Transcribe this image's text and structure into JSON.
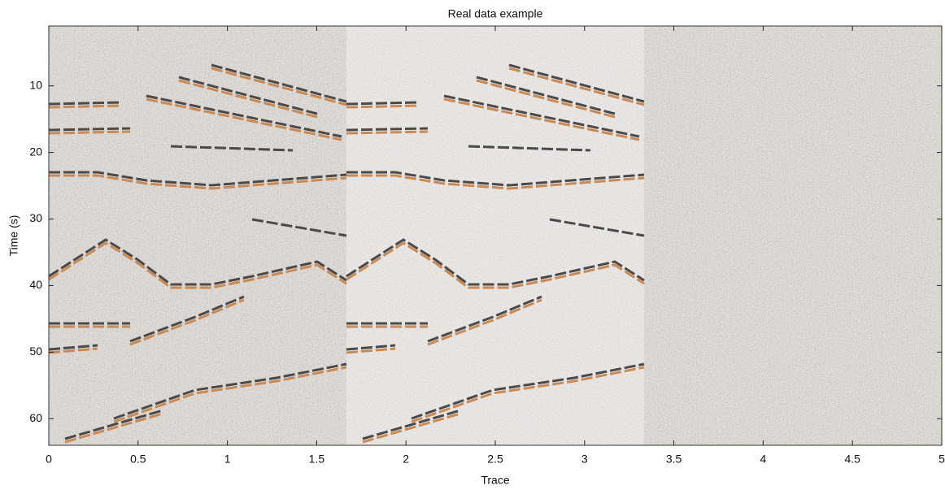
{
  "chart_data": {
    "type": "image",
    "title": "Real data example",
    "xlabel": "Trace",
    "ylabel": "Time (s)",
    "xlim": [
      0,
      5
    ],
    "xticks": [
      0,
      0.5,
      1,
      1.5,
      2,
      2.5,
      3,
      3.5,
      4,
      4.5,
      5
    ],
    "ylim": [
      64,
      1
    ],
    "yticks": [
      10,
      20,
      30,
      40,
      50,
      60
    ],
    "y_reversed": true
  }
}
